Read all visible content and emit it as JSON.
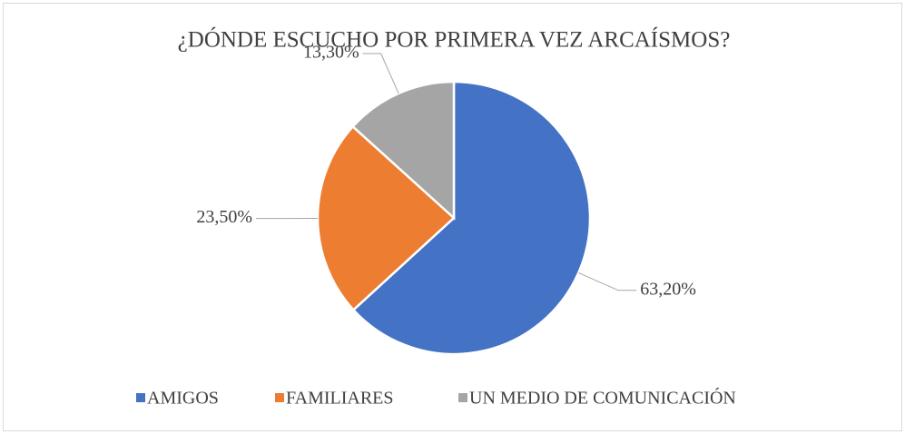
{
  "chart_data": {
    "type": "pie",
    "title": "¿DÓNDE ESCUCHO POR PRIMERA VEZ ARCAÍSMOS?",
    "categories": [
      "AMIGOS",
      "FAMILIARES",
      "UN MEDIO DE COMUNICACIÓN"
    ],
    "values": [
      63.2,
      23.5,
      13.3
    ],
    "value_labels": [
      "63,20%",
      "23,50%",
      "13,30%"
    ],
    "colors": [
      "#4472c4",
      "#ed7d31",
      "#a5a5a5"
    ],
    "legend": "bottom"
  }
}
